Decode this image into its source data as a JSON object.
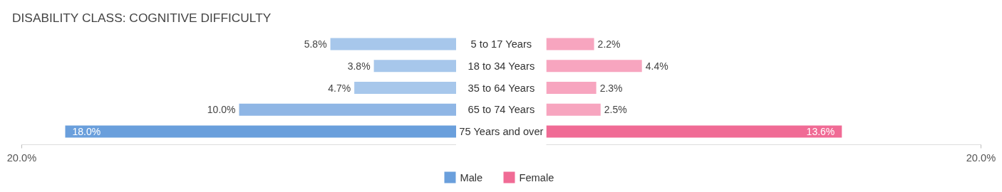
{
  "chart_data": [
    {
      "type": "bar",
      "orientation": "horizontal",
      "title": "DISABILITY CLASS: COGNITIVE DIFFICULTY",
      "categories": [
        "5 to 17 Years",
        "18 to 34 Years",
        "35 to 64 Years",
        "65 to 74 Years",
        "75 Years and over"
      ],
      "xlim": [
        20,
        0
      ],
      "xticks": [
        {
          "value": 20,
          "label": "20.0%"
        }
      ],
      "legend": "bottom",
      "grid": false,
      "tick_labels": "x",
      "series": [
        {
          "name": "Male",
          "color": "#6a9fdc",
          "colors": [
            "#a7c7eb",
            "#a7c7eb",
            "#a7c7eb",
            "#8fb6e5",
            "#6a9fdc"
          ],
          "values": [
            5.8,
            3.8,
            4.7,
            10.0,
            18.0
          ],
          "value_labels": [
            "5.8%",
            "3.8%",
            "4.7%",
            "10.0%",
            "18.0%"
          ]
        }
      ]
    },
    {
      "type": "bar",
      "orientation": "horizontal",
      "xlim": [
        0,
        20
      ],
      "xticks": [
        {
          "value": 20,
          "label": "20.0%"
        }
      ],
      "legend": "bottom",
      "grid": false,
      "tick_labels": "x",
      "series": [
        {
          "name": "Female",
          "color": "#f06b95",
          "colors": [
            "#f7a5bf",
            "#f7a5bf",
            "#f7a5bf",
            "#f7a5bf",
            "#f06b95"
          ],
          "values": [
            2.2,
            4.4,
            2.3,
            2.5,
            13.6
          ],
          "value_labels": [
            "2.2%",
            "4.4%",
            "2.3%",
            "2.5%",
            "13.6%"
          ]
        }
      ]
    }
  ]
}
